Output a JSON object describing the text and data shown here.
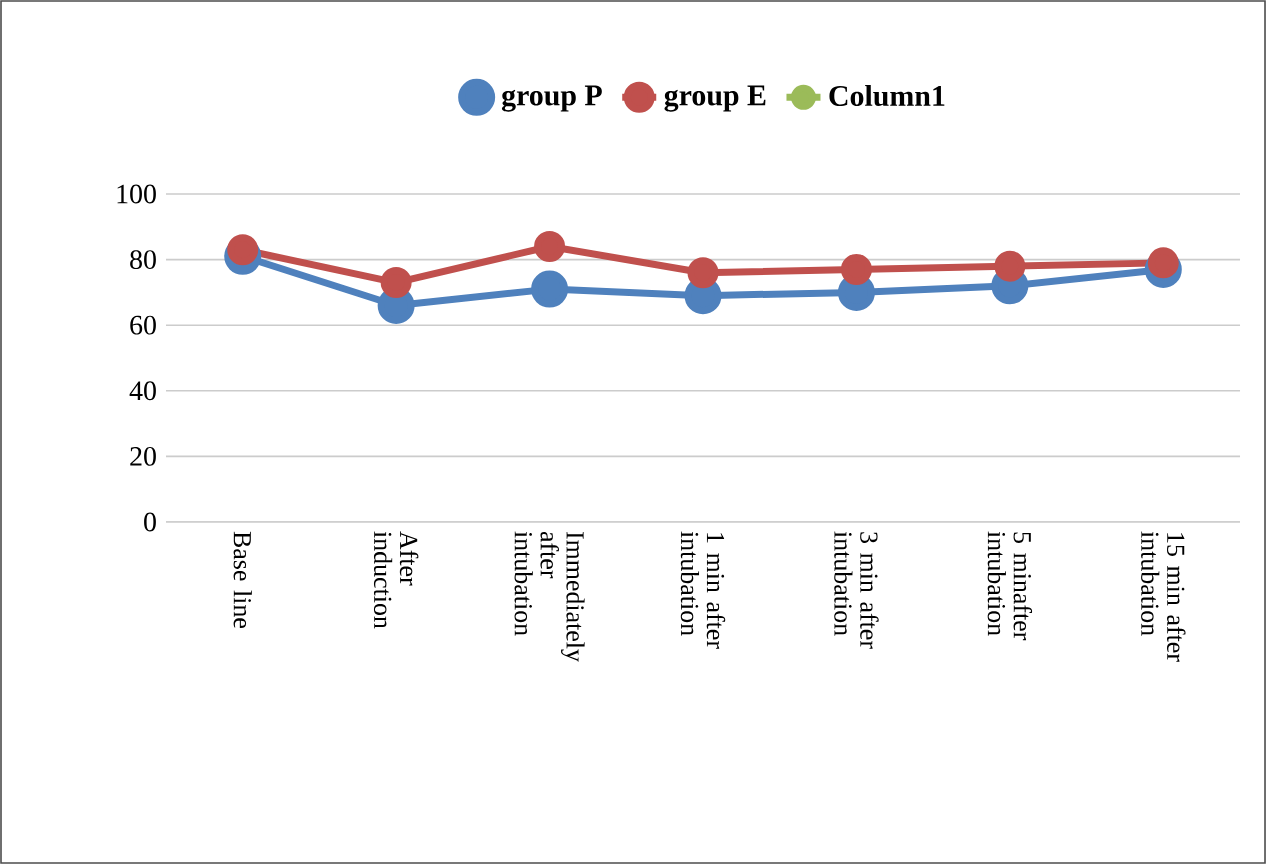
{
  "chart_data": {
    "type": "line",
    "categories": [
      "Base line",
      "After induction",
      "Immediately after intubation",
      "1 min after intubation",
      "3 min after intubation",
      "5 minafter intubation",
      "15 min after intubation"
    ],
    "series": [
      {
        "name": "group P",
        "color": "#4f81bd",
        "values": [
          81,
          66,
          71,
          69,
          70,
          72,
          77
        ]
      },
      {
        "name": "group E",
        "color": "#c0504d",
        "values": [
          83,
          73,
          84,
          76,
          77,
          78,
          79
        ]
      },
      {
        "name": "Column1",
        "color": "#9bbb59",
        "values": [
          null,
          null,
          null,
          null,
          null,
          null,
          null
        ]
      }
    ],
    "ylim": [
      0,
      100
    ],
    "yticks": [
      0,
      20,
      40,
      60,
      80,
      100
    ],
    "grid": "y",
    "legend": "top",
    "marker": "circle",
    "line_style": "solid"
  }
}
